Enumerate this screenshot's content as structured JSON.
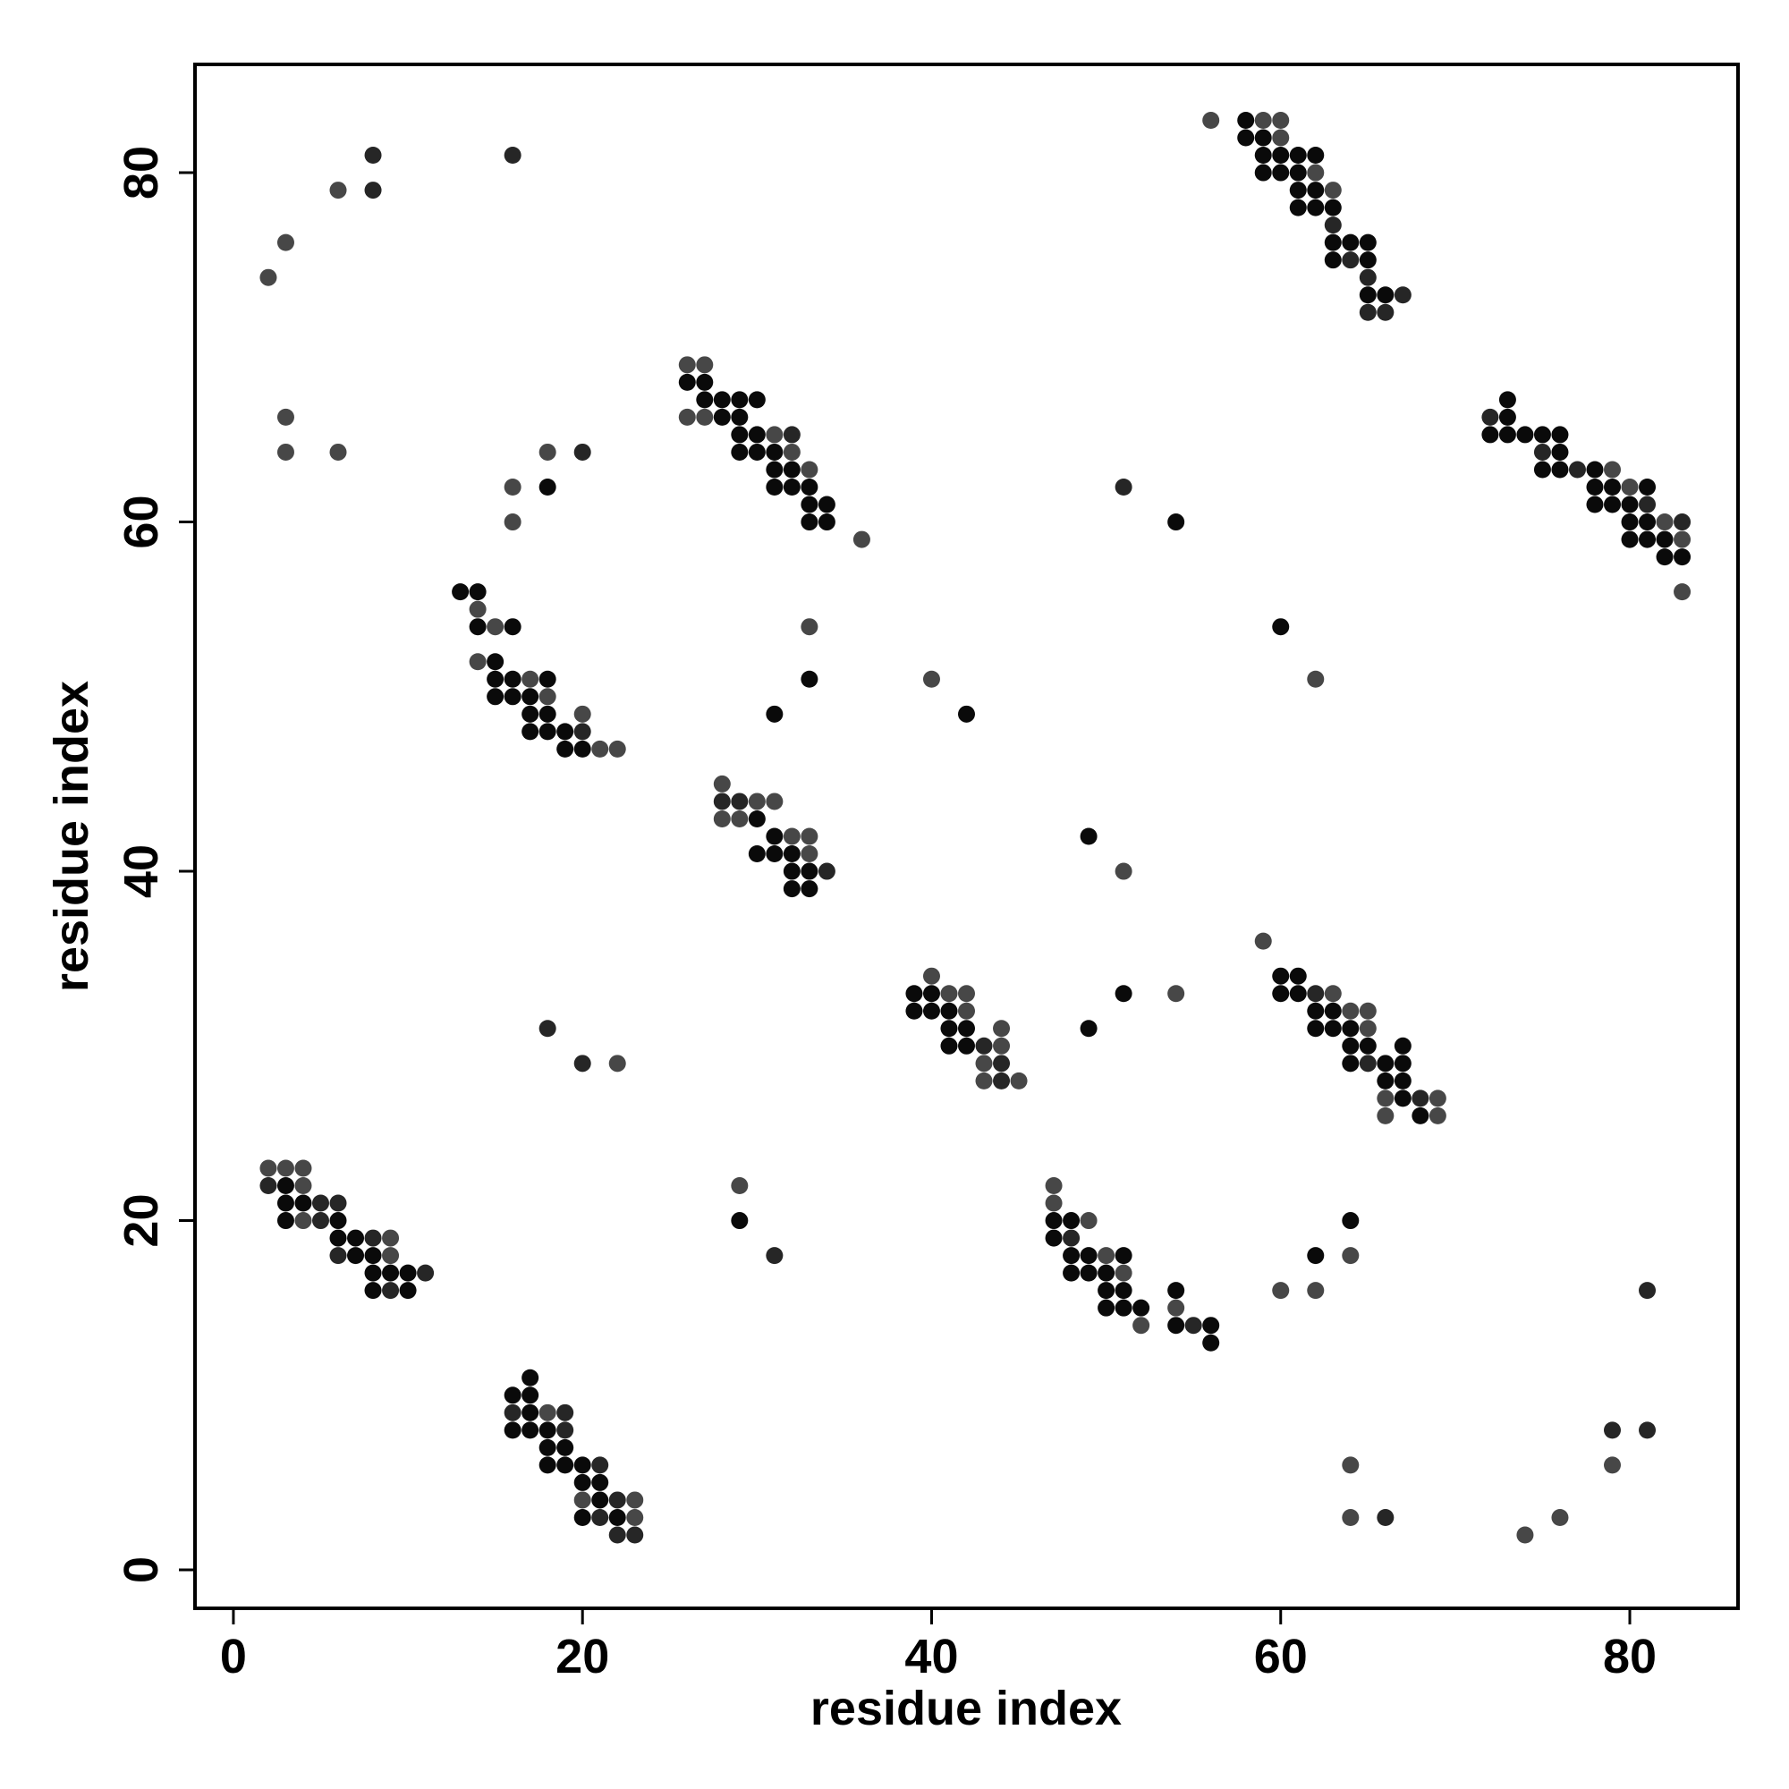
{
  "chart_data": {
    "type": "scatter",
    "title": "",
    "xlabel": "residue index",
    "ylabel": "residue index",
    "xlim": [
      -2.2,
      86.2
    ],
    "ylim": [
      -2.2,
      86.2
    ],
    "xticks": [
      0,
      20,
      40,
      60,
      80
    ],
    "yticks": [
      0,
      20,
      40,
      60,
      80
    ],
    "grid": false,
    "legend": "none",
    "shade_colors": {
      "dark": "#0a0a0a",
      "mid": "#262626",
      "light": "#474747"
    },
    "points": [
      [
        2,
        74,
        "light"
      ],
      [
        3,
        76,
        "light"
      ],
      [
        6,
        79,
        "light"
      ],
      [
        8,
        79,
        "mid"
      ],
      [
        8,
        81,
        "mid"
      ],
      [
        16,
        81,
        "mid"
      ],
      [
        3,
        66,
        "light"
      ],
      [
        3,
        64,
        "light"
      ],
      [
        6,
        64,
        "light"
      ],
      [
        18,
        64,
        "light"
      ],
      [
        20,
        64,
        "mid"
      ],
      [
        16,
        62,
        "light"
      ],
      [
        18,
        62,
        "dark"
      ],
      [
        16,
        60,
        "light"
      ],
      [
        26,
        69,
        "light"
      ],
      [
        27,
        69,
        "light"
      ],
      [
        26,
        68,
        "dark"
      ],
      [
        27,
        68,
        "dark"
      ],
      [
        27,
        67,
        "dark"
      ],
      [
        28,
        67,
        "dark"
      ],
      [
        29,
        67,
        "dark"
      ],
      [
        30,
        67,
        "dark"
      ],
      [
        26,
        66,
        "light"
      ],
      [
        27,
        66,
        "light"
      ],
      [
        28,
        66,
        "dark"
      ],
      [
        29,
        66,
        "dark"
      ],
      [
        29,
        65,
        "dark"
      ],
      [
        30,
        65,
        "dark"
      ],
      [
        31,
        65,
        "light"
      ],
      [
        32,
        65,
        "mid"
      ],
      [
        29,
        64,
        "dark"
      ],
      [
        30,
        64,
        "dark"
      ],
      [
        31,
        64,
        "dark"
      ],
      [
        32,
        64,
        "light"
      ],
      [
        31,
        63,
        "dark"
      ],
      [
        32,
        63,
        "dark"
      ],
      [
        33,
        63,
        "light"
      ],
      [
        31,
        62,
        "dark"
      ],
      [
        32,
        62,
        "dark"
      ],
      [
        33,
        62,
        "dark"
      ],
      [
        33,
        61,
        "dark"
      ],
      [
        34,
        61,
        "dark"
      ],
      [
        33,
        60,
        "dark"
      ],
      [
        34,
        60,
        "dark"
      ],
      [
        36,
        59,
        "light"
      ],
      [
        13,
        56,
        "dark"
      ],
      [
        14,
        56,
        "dark"
      ],
      [
        14,
        55,
        "light"
      ],
      [
        14,
        54,
        "dark"
      ],
      [
        15,
        54,
        "light"
      ],
      [
        16,
        54,
        "dark"
      ],
      [
        14,
        52,
        "light"
      ],
      [
        15,
        52,
        "dark"
      ],
      [
        15,
        51,
        "dark"
      ],
      [
        16,
        51,
        "dark"
      ],
      [
        17,
        51,
        "light"
      ],
      [
        18,
        51,
        "dark"
      ],
      [
        15,
        50,
        "dark"
      ],
      [
        16,
        50,
        "dark"
      ],
      [
        17,
        50,
        "dark"
      ],
      [
        18,
        50,
        "light"
      ],
      [
        17,
        49,
        "dark"
      ],
      [
        18,
        49,
        "dark"
      ],
      [
        20,
        49,
        "light"
      ],
      [
        17,
        48,
        "dark"
      ],
      [
        18,
        48,
        "dark"
      ],
      [
        19,
        48,
        "dark"
      ],
      [
        20,
        48,
        "mid"
      ],
      [
        19,
        47,
        "dark"
      ],
      [
        20,
        47,
        "dark"
      ],
      [
        21,
        47,
        "light"
      ],
      [
        22,
        47,
        "light"
      ],
      [
        33,
        54,
        "light"
      ],
      [
        33,
        51,
        "dark"
      ],
      [
        31,
        49,
        "dark"
      ],
      [
        28,
        45,
        "light"
      ],
      [
        28,
        44,
        "mid"
      ],
      [
        29,
        44,
        "mid"
      ],
      [
        30,
        44,
        "light"
      ],
      [
        31,
        44,
        "light"
      ],
      [
        28,
        43,
        "light"
      ],
      [
        29,
        43,
        "light"
      ],
      [
        30,
        43,
        "dark"
      ],
      [
        31,
        42,
        "dark"
      ],
      [
        32,
        42,
        "light"
      ],
      [
        33,
        42,
        "light"
      ],
      [
        30,
        41,
        "dark"
      ],
      [
        31,
        41,
        "dark"
      ],
      [
        32,
        41,
        "dark"
      ],
      [
        33,
        41,
        "light"
      ],
      [
        32,
        40,
        "dark"
      ],
      [
        33,
        40,
        "dark"
      ],
      [
        34,
        40,
        "mid"
      ],
      [
        32,
        39,
        "dark"
      ],
      [
        33,
        39,
        "dark"
      ],
      [
        40,
        51,
        "light"
      ],
      [
        42,
        49,
        "dark"
      ],
      [
        39,
        33,
        "dark"
      ],
      [
        40,
        33,
        "dark"
      ],
      [
        41,
        33,
        "light"
      ],
      [
        42,
        33,
        "light"
      ],
      [
        40,
        34,
        "light"
      ],
      [
        39,
        32,
        "dark"
      ],
      [
        40,
        32,
        "dark"
      ],
      [
        41,
        32,
        "dark"
      ],
      [
        42,
        32,
        "light"
      ],
      [
        41,
        31,
        "dark"
      ],
      [
        42,
        31,
        "dark"
      ],
      [
        44,
        31,
        "light"
      ],
      [
        41,
        30,
        "dark"
      ],
      [
        42,
        30,
        "dark"
      ],
      [
        43,
        30,
        "mid"
      ],
      [
        44,
        30,
        "light"
      ],
      [
        43,
        29,
        "light"
      ],
      [
        44,
        29,
        "mid"
      ],
      [
        43,
        28,
        "light"
      ],
      [
        44,
        28,
        "mid"
      ],
      [
        45,
        28,
        "light"
      ],
      [
        18,
        31,
        "mid"
      ],
      [
        20,
        29,
        "mid"
      ],
      [
        22,
        29,
        "light"
      ],
      [
        49,
        42,
        "dark"
      ],
      [
        51,
        40,
        "light"
      ],
      [
        51,
        33,
        "dark"
      ],
      [
        49,
        31,
        "dark"
      ],
      [
        54,
        33,
        "light"
      ],
      [
        59,
        36,
        "light"
      ],
      [
        60,
        34,
        "dark"
      ],
      [
        61,
        34,
        "dark"
      ],
      [
        60,
        33,
        "dark"
      ],
      [
        61,
        33,
        "dark"
      ],
      [
        62,
        33,
        "mid"
      ],
      [
        63,
        33,
        "light"
      ],
      [
        62,
        32,
        "dark"
      ],
      [
        63,
        32,
        "dark"
      ],
      [
        64,
        32,
        "light"
      ],
      [
        65,
        32,
        "light"
      ],
      [
        62,
        31,
        "dark"
      ],
      [
        63,
        31,
        "dark"
      ],
      [
        64,
        31,
        "dark"
      ],
      [
        65,
        31,
        "light"
      ],
      [
        64,
        30,
        "dark"
      ],
      [
        65,
        30,
        "dark"
      ],
      [
        67,
        30,
        "dark"
      ],
      [
        64,
        29,
        "dark"
      ],
      [
        65,
        29,
        "mid"
      ],
      [
        66,
        29,
        "dark"
      ],
      [
        67,
        29,
        "dark"
      ],
      [
        66,
        28,
        "dark"
      ],
      [
        67,
        28,
        "dark"
      ],
      [
        66,
        27,
        "light"
      ],
      [
        67,
        27,
        "dark"
      ],
      [
        68,
        27,
        "mid"
      ],
      [
        69,
        27,
        "light"
      ],
      [
        66,
        26,
        "light"
      ],
      [
        68,
        26,
        "dark"
      ],
      [
        69,
        26,
        "light"
      ],
      [
        60,
        54,
        "dark"
      ],
      [
        62,
        51,
        "light"
      ],
      [
        51,
        62,
        "mid"
      ],
      [
        54,
        60,
        "dark"
      ],
      [
        56,
        83,
        "light"
      ],
      [
        58,
        83,
        "dark"
      ],
      [
        59,
        83,
        "light"
      ],
      [
        60,
        83,
        "light"
      ],
      [
        58,
        82,
        "dark"
      ],
      [
        59,
        82,
        "dark"
      ],
      [
        60,
        82,
        "light"
      ],
      [
        59,
        81,
        "dark"
      ],
      [
        60,
        81,
        "dark"
      ],
      [
        61,
        81,
        "dark"
      ],
      [
        62,
        81,
        "dark"
      ],
      [
        59,
        80,
        "dark"
      ],
      [
        60,
        80,
        "dark"
      ],
      [
        61,
        80,
        "dark"
      ],
      [
        62,
        80,
        "light"
      ],
      [
        61,
        79,
        "dark"
      ],
      [
        62,
        79,
        "dark"
      ],
      [
        63,
        79,
        "light"
      ],
      [
        61,
        78,
        "dark"
      ],
      [
        62,
        78,
        "dark"
      ],
      [
        63,
        78,
        "dark"
      ],
      [
        63,
        77,
        "mid"
      ],
      [
        63,
        76,
        "dark"
      ],
      [
        64,
        76,
        "dark"
      ],
      [
        65,
        76,
        "dark"
      ],
      [
        63,
        75,
        "dark"
      ],
      [
        64,
        75,
        "mid"
      ],
      [
        65,
        75,
        "dark"
      ],
      [
        65,
        74,
        "mid"
      ],
      [
        65,
        73,
        "dark"
      ],
      [
        66,
        73,
        "dark"
      ],
      [
        67,
        73,
        "mid"
      ],
      [
        65,
        72,
        "mid"
      ],
      [
        66,
        72,
        "mid"
      ],
      [
        72,
        66,
        "mid"
      ],
      [
        73,
        66,
        "dark"
      ],
      [
        73,
        67,
        "dark"
      ],
      [
        72,
        65,
        "dark"
      ],
      [
        73,
        65,
        "dark"
      ],
      [
        74,
        65,
        "dark"
      ],
      [
        75,
        65,
        "dark"
      ],
      [
        76,
        65,
        "dark"
      ],
      [
        75,
        64,
        "mid"
      ],
      [
        76,
        64,
        "dark"
      ],
      [
        75,
        63,
        "dark"
      ],
      [
        76,
        63,
        "dark"
      ],
      [
        77,
        63,
        "mid"
      ],
      [
        78,
        63,
        "dark"
      ],
      [
        79,
        63,
        "light"
      ],
      [
        78,
        62,
        "dark"
      ],
      [
        79,
        62,
        "dark"
      ],
      [
        80,
        62,
        "light"
      ],
      [
        81,
        62,
        "dark"
      ],
      [
        78,
        61,
        "dark"
      ],
      [
        79,
        61,
        "dark"
      ],
      [
        80,
        61,
        "dark"
      ],
      [
        81,
        61,
        "mid"
      ],
      [
        80,
        60,
        "dark"
      ],
      [
        81,
        60,
        "dark"
      ],
      [
        82,
        60,
        "light"
      ],
      [
        83,
        60,
        "mid"
      ],
      [
        80,
        59,
        "dark"
      ],
      [
        81,
        59,
        "dark"
      ],
      [
        82,
        59,
        "dark"
      ],
      [
        83,
        59,
        "light"
      ],
      [
        82,
        58,
        "dark"
      ],
      [
        83,
        58,
        "dark"
      ],
      [
        83,
        56,
        "light"
      ],
      [
        2,
        23,
        "light"
      ],
      [
        3,
        23,
        "light"
      ],
      [
        4,
        23,
        "light"
      ],
      [
        2,
        22,
        "mid"
      ],
      [
        3,
        22,
        "dark"
      ],
      [
        4,
        22,
        "light"
      ],
      [
        3,
        21,
        "dark"
      ],
      [
        4,
        21,
        "dark"
      ],
      [
        5,
        21,
        "mid"
      ],
      [
        6,
        21,
        "mid"
      ],
      [
        3,
        20,
        "dark"
      ],
      [
        4,
        20,
        "light"
      ],
      [
        5,
        20,
        "mid"
      ],
      [
        6,
        20,
        "dark"
      ],
      [
        6,
        19,
        "dark"
      ],
      [
        7,
        19,
        "dark"
      ],
      [
        8,
        19,
        "mid"
      ],
      [
        9,
        19,
        "light"
      ],
      [
        6,
        18,
        "mid"
      ],
      [
        7,
        18,
        "dark"
      ],
      [
        8,
        18,
        "dark"
      ],
      [
        9,
        18,
        "light"
      ],
      [
        8,
        17,
        "dark"
      ],
      [
        9,
        17,
        "dark"
      ],
      [
        10,
        17,
        "dark"
      ],
      [
        11,
        17,
        "mid"
      ],
      [
        8,
        16,
        "dark"
      ],
      [
        9,
        16,
        "mid"
      ],
      [
        10,
        16,
        "dark"
      ],
      [
        29,
        22,
        "light"
      ],
      [
        29,
        20,
        "dark"
      ],
      [
        31,
        18,
        "mid"
      ],
      [
        47,
        22,
        "light"
      ],
      [
        47,
        21,
        "light"
      ],
      [
        47,
        20,
        "dark"
      ],
      [
        48,
        20,
        "dark"
      ],
      [
        49,
        20,
        "light"
      ],
      [
        47,
        19,
        "dark"
      ],
      [
        48,
        19,
        "mid"
      ],
      [
        48,
        18,
        "dark"
      ],
      [
        49,
        18,
        "dark"
      ],
      [
        50,
        18,
        "light"
      ],
      [
        51,
        18,
        "dark"
      ],
      [
        48,
        17,
        "dark"
      ],
      [
        49,
        17,
        "dark"
      ],
      [
        50,
        17,
        "dark"
      ],
      [
        51,
        17,
        "light"
      ],
      [
        50,
        16,
        "dark"
      ],
      [
        51,
        16,
        "dark"
      ],
      [
        50,
        15,
        "dark"
      ],
      [
        51,
        15,
        "dark"
      ],
      [
        52,
        15,
        "dark"
      ],
      [
        52,
        14,
        "light"
      ],
      [
        54,
        16,
        "dark"
      ],
      [
        54,
        15,
        "light"
      ],
      [
        54,
        14,
        "dark"
      ],
      [
        55,
        14,
        "mid"
      ],
      [
        56,
        14,
        "dark"
      ],
      [
        56,
        13,
        "dark"
      ],
      [
        60,
        16,
        "light"
      ],
      [
        62,
        16,
        "light"
      ],
      [
        62,
        18,
        "dark"
      ],
      [
        64,
        20,
        "dark"
      ],
      [
        64,
        18,
        "light"
      ],
      [
        81,
        16,
        "mid"
      ],
      [
        17,
        11,
        "dark"
      ],
      [
        16,
        10,
        "dark"
      ],
      [
        17,
        10,
        "dark"
      ],
      [
        16,
        9,
        "mid"
      ],
      [
        17,
        9,
        "dark"
      ],
      [
        18,
        9,
        "light"
      ],
      [
        19,
        9,
        "mid"
      ],
      [
        16,
        8,
        "dark"
      ],
      [
        17,
        8,
        "dark"
      ],
      [
        18,
        8,
        "dark"
      ],
      [
        19,
        8,
        "mid"
      ],
      [
        18,
        7,
        "dark"
      ],
      [
        19,
        7,
        "dark"
      ],
      [
        18,
        6,
        "dark"
      ],
      [
        19,
        6,
        "dark"
      ],
      [
        20,
        6,
        "dark"
      ],
      [
        21,
        6,
        "mid"
      ],
      [
        20,
        5,
        "dark"
      ],
      [
        21,
        5,
        "dark"
      ],
      [
        20,
        4,
        "light"
      ],
      [
        21,
        4,
        "dark"
      ],
      [
        22,
        4,
        "mid"
      ],
      [
        23,
        4,
        "light"
      ],
      [
        20,
        3,
        "dark"
      ],
      [
        21,
        3,
        "mid"
      ],
      [
        22,
        3,
        "dark"
      ],
      [
        23,
        3,
        "light"
      ],
      [
        22,
        2,
        "mid"
      ],
      [
        23,
        2,
        "mid"
      ],
      [
        64,
        6,
        "light"
      ],
      [
        64,
        3,
        "light"
      ],
      [
        66,
        3,
        "mid"
      ],
      [
        74,
        2,
        "light"
      ],
      [
        76,
        3,
        "light"
      ],
      [
        79,
        6,
        "light"
      ],
      [
        79,
        8,
        "mid"
      ],
      [
        81,
        8,
        "mid"
      ]
    ]
  }
}
